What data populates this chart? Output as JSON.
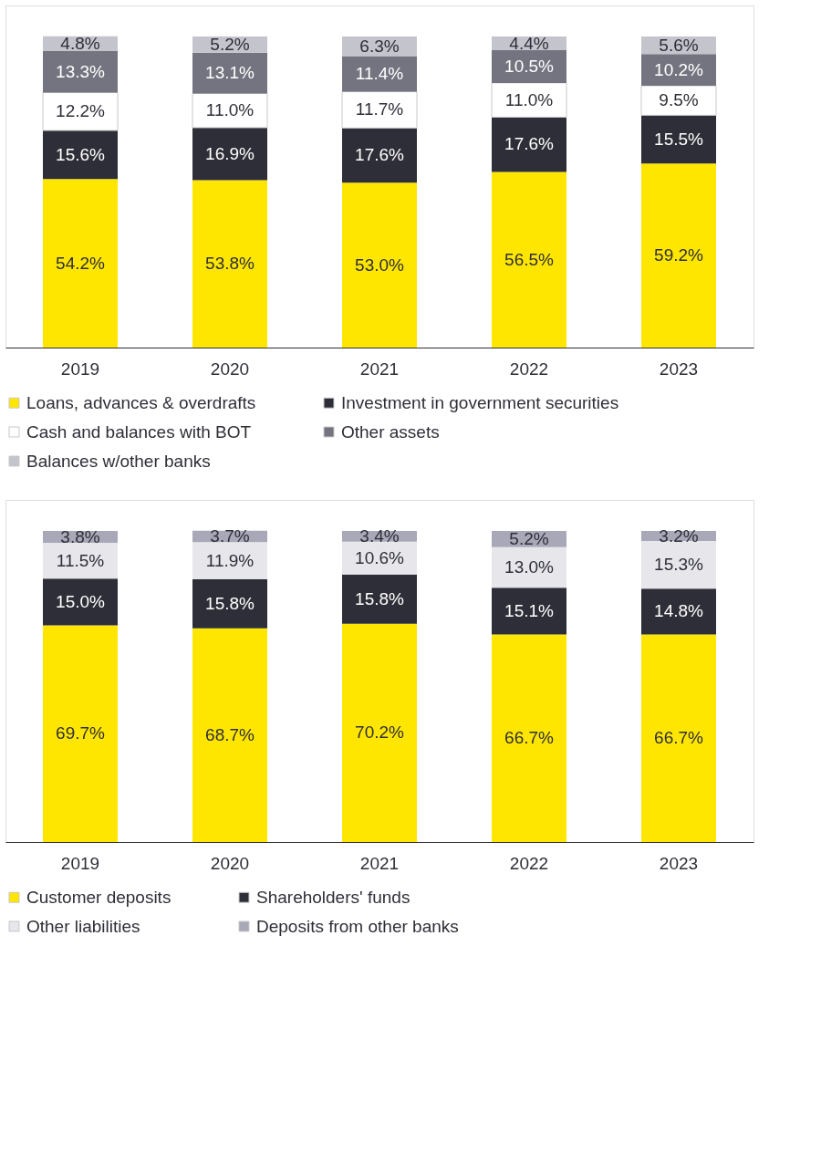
{
  "chart_data": [
    {
      "type": "bar",
      "stacked": true,
      "categories": [
        "2019",
        "2020",
        "2021",
        "2022",
        "2023"
      ],
      "legend": "bottom",
      "tick_labels": "x",
      "series": [
        {
          "name": "Loans, advances & overdrafts",
          "color": "#ffe600",
          "values": [
            54.2,
            53.8,
            53.0,
            56.5,
            59.2
          ],
          "value_labels": [
            "54.2%",
            "53.8%",
            "53.0%",
            "56.5%",
            "59.2%"
          ]
        },
        {
          "name": "Investment in government securities",
          "color": "#2e2e38",
          "values": [
            15.6,
            16.9,
            17.6,
            17.6,
            15.5
          ],
          "value_labels": [
            "15.6%",
            "16.9%",
            "17.6%",
            "17.6%",
            "15.5%"
          ]
        },
        {
          "name": "Cash and balances with BOT",
          "color": "#ffffff",
          "values": [
            12.2,
            11.0,
            11.7,
            11.0,
            9.5
          ],
          "value_labels": [
            "12.2%",
            "11.0%",
            "11.7%",
            "11.0%",
            "9.5%"
          ]
        },
        {
          "name": "Other assets",
          "color": "#747480",
          "values": [
            13.3,
            13.1,
            11.4,
            10.5,
            10.2
          ],
          "value_labels": [
            "13.3%",
            "13.1%",
            "11.4%",
            "10.5%",
            "10.2%"
          ]
        },
        {
          "name": "Balances w/other banks",
          "color": "#c4c4cd",
          "values": [
            4.8,
            5.2,
            6.3,
            4.4,
            5.6
          ],
          "value_labels": [
            "4.8%",
            "5.2%",
            "6.3%",
            "4.4%",
            "5.6%"
          ]
        }
      ]
    },
    {
      "type": "bar",
      "stacked": true,
      "categories": [
        "2019",
        "2020",
        "2021",
        "2022",
        "2023"
      ],
      "legend": "bottom",
      "tick_labels": "x",
      "series": [
        {
          "name": "Customer deposits",
          "color": "#ffe600",
          "values": [
            69.7,
            68.7,
            70.2,
            66.7,
            66.7
          ],
          "value_labels": [
            "69.7%",
            "68.7%",
            "70.2%",
            "66.7%",
            "66.7%"
          ]
        },
        {
          "name": "Shareholders' funds",
          "color": "#2e2e38",
          "values": [
            15.0,
            15.8,
            15.8,
            15.1,
            14.8
          ],
          "value_labels": [
            "15.0%",
            "15.8%",
            "15.8%",
            "15.1%",
            "14.8%"
          ]
        },
        {
          "name": "Other liabilities",
          "color": "#e6e6eb",
          "values": [
            11.5,
            11.9,
            10.6,
            13.0,
            15.3
          ],
          "value_labels": [
            "11.5%",
            "11.9%",
            "10.6%",
            "13.0%",
            "15.3%"
          ]
        },
        {
          "name": "Deposits from other banks",
          "color": "#a9a8b8",
          "values": [
            3.8,
            3.7,
            3.4,
            5.2,
            3.2
          ],
          "value_labels": [
            "3.8%",
            "3.7%",
            "3.4%",
            "5.2%",
            "3.2%"
          ]
        }
      ]
    }
  ]
}
